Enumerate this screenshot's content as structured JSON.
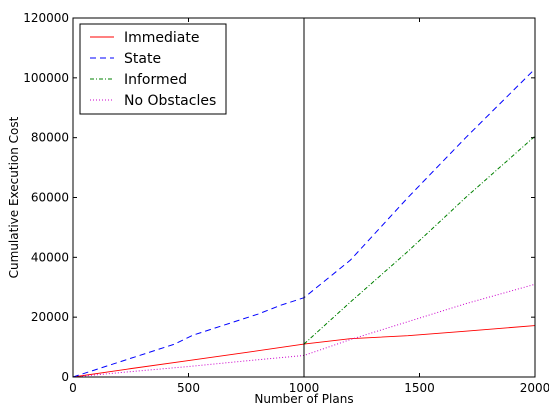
{
  "chart_data": {
    "type": "line",
    "xlabel": "Number of Plans",
    "ylabel": "Cumulative Execution Cost",
    "xlim": [
      0,
      2000
    ],
    "ylim": [
      0,
      120000
    ],
    "x_ticks": [
      0,
      500,
      1000,
      1500,
      2000
    ],
    "y_ticks": [
      0,
      20000,
      40000,
      60000,
      80000,
      100000,
      120000
    ],
    "grid": false,
    "legend_position": "top-left",
    "vertical_marker_x": 1000,
    "series": [
      {
        "name": "Immediate",
        "color": "#ff0000",
        "dash": "solid",
        "x": [
          0,
          250,
          500,
          750,
          1000,
          1200,
          1450,
          1700,
          2000
        ],
        "y": [
          0,
          2800,
          5500,
          8200,
          11000,
          12800,
          13800,
          15300,
          17200
        ]
      },
      {
        "name": "State",
        "color": "#0000ff",
        "dash": "dashed",
        "x": [
          0,
          200,
          440,
          520,
          700,
          800,
          900,
          1000,
          1200,
          1450,
          1700,
          2000
        ],
        "y": [
          0,
          5000,
          11000,
          14000,
          18500,
          21000,
          24000,
          26500,
          39000,
          60000,
          80000,
          103000
        ]
      },
      {
        "name": "Informed",
        "color": "#008000",
        "dash": "dashdot",
        "x": [
          1000,
          1200,
          1450,
          1700,
          2000
        ],
        "y": [
          11000,
          25000,
          42000,
          60000,
          80500
        ]
      },
      {
        "name": "No Obstacles",
        "color": "#cc00cc",
        "dash": "dotted",
        "x": [
          0,
          250,
          500,
          750,
          1000,
          1200,
          1450,
          1700,
          2000
        ],
        "y": [
          0,
          1800,
          3500,
          5400,
          7200,
          12500,
          18500,
          24500,
          31000
        ]
      }
    ]
  }
}
